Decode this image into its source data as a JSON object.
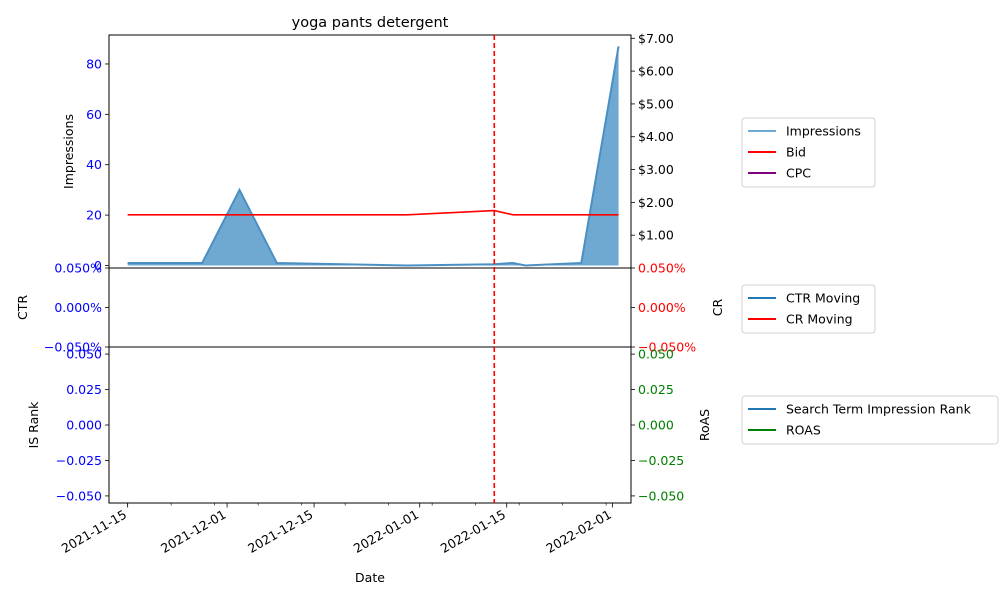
{
  "chart_data": {
    "type": "area",
    "title": "yoga pants detergent",
    "xlabel": "Date",
    "x_tick_labels": [
      "2021-11-15",
      "2021-12-01",
      "2021-12-15",
      "2022-01-01",
      "2022-01-15",
      "2022-02-01"
    ],
    "x_range": [
      "2021-11-12",
      "2022-02-04"
    ],
    "vline_date": "2022-01-13",
    "panels": [
      {
        "id": "impressions",
        "left_ylabel": "Impressions",
        "left_ticks": [
          "0",
          "20",
          "40",
          "60",
          "80"
        ],
        "left_tick_values": [
          0,
          20,
          40,
          60,
          80
        ],
        "left_ylim": [
          -1,
          91.5
        ],
        "right_ticks": [
          "$1.00",
          "$2.00",
          "$3.00",
          "$4.00",
          "$5.00",
          "$6.00",
          "$7.00"
        ],
        "right_tick_values": [
          1,
          2,
          3,
          4,
          5,
          6,
          7
        ],
        "right_ylim": [
          0,
          7.1
        ],
        "series": [
          {
            "name": "Impressions",
            "axis": "left",
            "kind": "area",
            "x": [
              "2021-11-15",
              "2021-11-27",
              "2021-12-03",
              "2021-12-09",
              "2021-12-30",
              "2022-01-13",
              "2022-01-16",
              "2022-01-18",
              "2022-01-27",
              "2022-02-02"
            ],
            "values": [
              1,
              1,
              30,
              1,
              0,
              0.5,
              1,
              0,
              1,
              87
            ]
          },
          {
            "name": "Bid",
            "axis": "right",
            "kind": "line",
            "x": [
              "2021-11-15",
              "2021-12-30",
              "2022-01-13",
              "2022-01-16",
              "2022-02-02"
            ],
            "values": [
              1.62,
              1.62,
              1.75,
              1.62,
              1.62
            ]
          },
          {
            "name": "CPC",
            "axis": "right",
            "kind": "line",
            "x": [],
            "values": []
          }
        ]
      },
      {
        "id": "ctr",
        "left_ylabel": "CTR",
        "right_ylabel": "CR",
        "left_ticks": [
          "−0.050%",
          "0.000%",
          "0.050%"
        ],
        "left_tick_values": [
          -0.05,
          0,
          0.05
        ],
        "left_ylim": [
          -0.05,
          0.05
        ],
        "right_ticks": [
          "−0.050%",
          "0.000%",
          "0.050%"
        ],
        "right_tick_values": [
          -0.05,
          0,
          0.05
        ],
        "right_ylim": [
          -0.05,
          0.05
        ],
        "series": [
          {
            "name": "CTR Moving",
            "axis": "left",
            "kind": "line",
            "x": [],
            "values": []
          },
          {
            "name": "CR Moving",
            "axis": "right",
            "kind": "line",
            "x": [],
            "values": []
          }
        ]
      },
      {
        "id": "rank",
        "left_ylabel": "IS Rank",
        "right_ylabel": "RoAS",
        "left_ticks": [
          "−0.050",
          "−0.025",
          "0.000",
          "0.025",
          "0.050"
        ],
        "left_tick_values": [
          -0.05,
          -0.025,
          0,
          0.025,
          0.05
        ],
        "left_ylim": [
          -0.055,
          0.055
        ],
        "right_ticks": [
          "−0.050",
          "−0.025",
          "0.000",
          "0.025",
          "0.050"
        ],
        "right_tick_values": [
          -0.05,
          -0.025,
          0,
          0.025,
          0.05
        ],
        "right_ylim": [
          -0.055,
          0.055
        ],
        "series": [
          {
            "name": "Search Term Impression Rank",
            "axis": "left",
            "kind": "line",
            "x": [],
            "values": []
          },
          {
            "name": "ROAS",
            "axis": "right",
            "kind": "line",
            "x": [],
            "values": []
          }
        ]
      }
    ],
    "legends": [
      {
        "panel": "impressions",
        "placement": "right",
        "entries": [
          {
            "label": "Impressions",
            "color": "#6fa9d6"
          },
          {
            "label": "Bid",
            "color": "#ff0000"
          },
          {
            "label": "CPC",
            "color": "#800080"
          }
        ]
      },
      {
        "panel": "ctr",
        "placement": "right",
        "entries": [
          {
            "label": "CTR Moving",
            "color": "#1f77b4"
          },
          {
            "label": "CR Moving",
            "color": "#ff0000"
          }
        ]
      },
      {
        "panel": "rank",
        "placement": "right",
        "entries": [
          {
            "label": "Search Term Impression Rank",
            "color": "#1f77b4"
          },
          {
            "label": "ROAS",
            "color": "#008000"
          }
        ]
      }
    ],
    "colors": {
      "impressions_fill": "#5b9dcb",
      "impressions_line": "#4a8fc4",
      "bid": "#ff0000",
      "left_ticks_blue": "#0000ff",
      "right_ticks_red": "#ff0000",
      "right_ticks_green": "#008000",
      "vline": "#ff0000"
    }
  }
}
